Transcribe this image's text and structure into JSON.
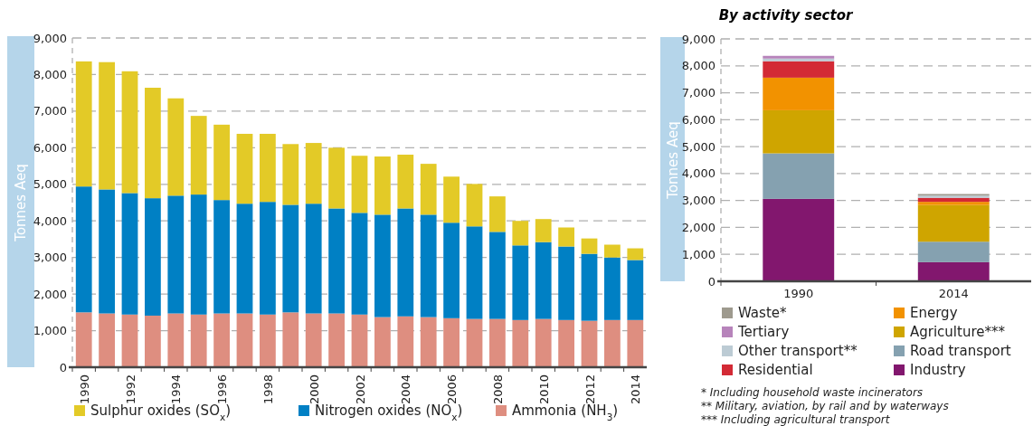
{
  "chart_data": [
    {
      "type": "bar",
      "ylabel": "Tonnes Aeq",
      "stacked": true,
      "grid": "y",
      "legend": "bottom",
      "categories": [
        "1990",
        null,
        "1992",
        null,
        "1994",
        null,
        "1996",
        null,
        "1998",
        null,
        "2000",
        null,
        "2002",
        null,
        "2004",
        null,
        "2006",
        null,
        "2008",
        null,
        "2010",
        null,
        "2012",
        null,
        "2014"
      ],
      "ylim": [
        0,
        9000
      ],
      "yticks": [
        0,
        {
          "value": 1000,
          "label": "1,000"
        },
        {
          "value": 2000,
          "label": "2,000"
        },
        {
          "value": 3000,
          "label": "3,000"
        },
        {
          "value": 4000,
          "label": "4,000"
        },
        {
          "value": 5000,
          "label": "5,000"
        },
        {
          "value": 6000,
          "label": "6,000"
        },
        {
          "value": 7000,
          "label": "7,000"
        },
        {
          "value": 8000,
          "label": "8,000"
        },
        {
          "value": 9000,
          "label": "9,000"
        }
      ],
      "series": [
        {
          "name": "Ammonia (NH$_{3}$)",
          "color": "#de8e80",
          "values": [
            1500,
            1470,
            1440,
            1410,
            1470,
            1440,
            1470,
            1470,
            1440,
            1500,
            1470,
            1470,
            1440,
            1370,
            1390,
            1370,
            1340,
            1320,
            1320,
            1290,
            1320,
            1290,
            1270,
            1290,
            1290
          ]
        },
        {
          "name": "Nitrogen oxides (NO$_{x}$)",
          "color": "#0080c4",
          "values": [
            3440,
            3390,
            3320,
            3210,
            3220,
            3280,
            3100,
            3000,
            3080,
            2940,
            3000,
            2870,
            2780,
            2800,
            2950,
            2800,
            2610,
            2530,
            2380,
            2040,
            2100,
            2010,
            1830,
            1710,
            1640
          ]
        },
        {
          "name": "Sulphur oxides (SO$_{x}$)",
          "color": "#e3ca27",
          "values": [
            3420,
            3480,
            3330,
            3020,
            2660,
            2150,
            2060,
            1910,
            1860,
            1660,
            1660,
            1660,
            1560,
            1590,
            1470,
            1390,
            1260,
            1160,
            970,
            670,
            630,
            520,
            420,
            350,
            320
          ]
        }
      ]
    },
    {
      "type": "bar",
      "title": "By activity sector",
      "ylabel": "Tonnes Aeq",
      "stacked": true,
      "grid": "y",
      "legend": "bottom",
      "categories": [
        "1990",
        "2014"
      ],
      "ylim": [
        0,
        9000
      ],
      "yticks": [
        0,
        {
          "value": 1000,
          "label": "1,000"
        },
        {
          "value": 2000,
          "label": "2,000"
        },
        {
          "value": 3000,
          "label": "3,000"
        },
        {
          "value": 4000,
          "label": "4,000"
        },
        {
          "value": 5000,
          "label": "5,000"
        },
        {
          "value": 6000,
          "label": "6,000"
        },
        {
          "value": 7000,
          "label": "7,000"
        },
        {
          "value": 8000,
          "label": "8,000"
        },
        {
          "value": 9000,
          "label": "9,000"
        }
      ],
      "series": [
        {
          "name": "Industry",
          "color": "#82176e",
          "values": [
            3060,
            710
          ]
        },
        {
          "name": "Road transport",
          "color": "#85a1b0",
          "values": [
            1690,
            760
          ]
        },
        {
          "name": "Agriculture***",
          "color": "#cfa500",
          "values": [
            1600,
            1360
          ]
        },
        {
          "name": "Energy",
          "color": "#f29200",
          "values": [
            1210,
            120
          ]
        },
        {
          "name": "Residential",
          "color": "#d32a35",
          "values": [
            610,
            150
          ]
        },
        {
          "name": "Other transport**",
          "color": "#bccbd4",
          "values": [
            100,
            80
          ]
        },
        {
          "name": "Tertiary",
          "color": "#b784bb",
          "values": [
            100,
            0
          ]
        },
        {
          "name": "Waste*",
          "color": "#9e9a8e",
          "values": [
            0,
            60
          ]
        }
      ],
      "annotations": [
        "* Including household waste incinerators",
        "** Military, aviation, by rail and by waterways",
        "*** Including agricultural transport"
      ]
    }
  ]
}
